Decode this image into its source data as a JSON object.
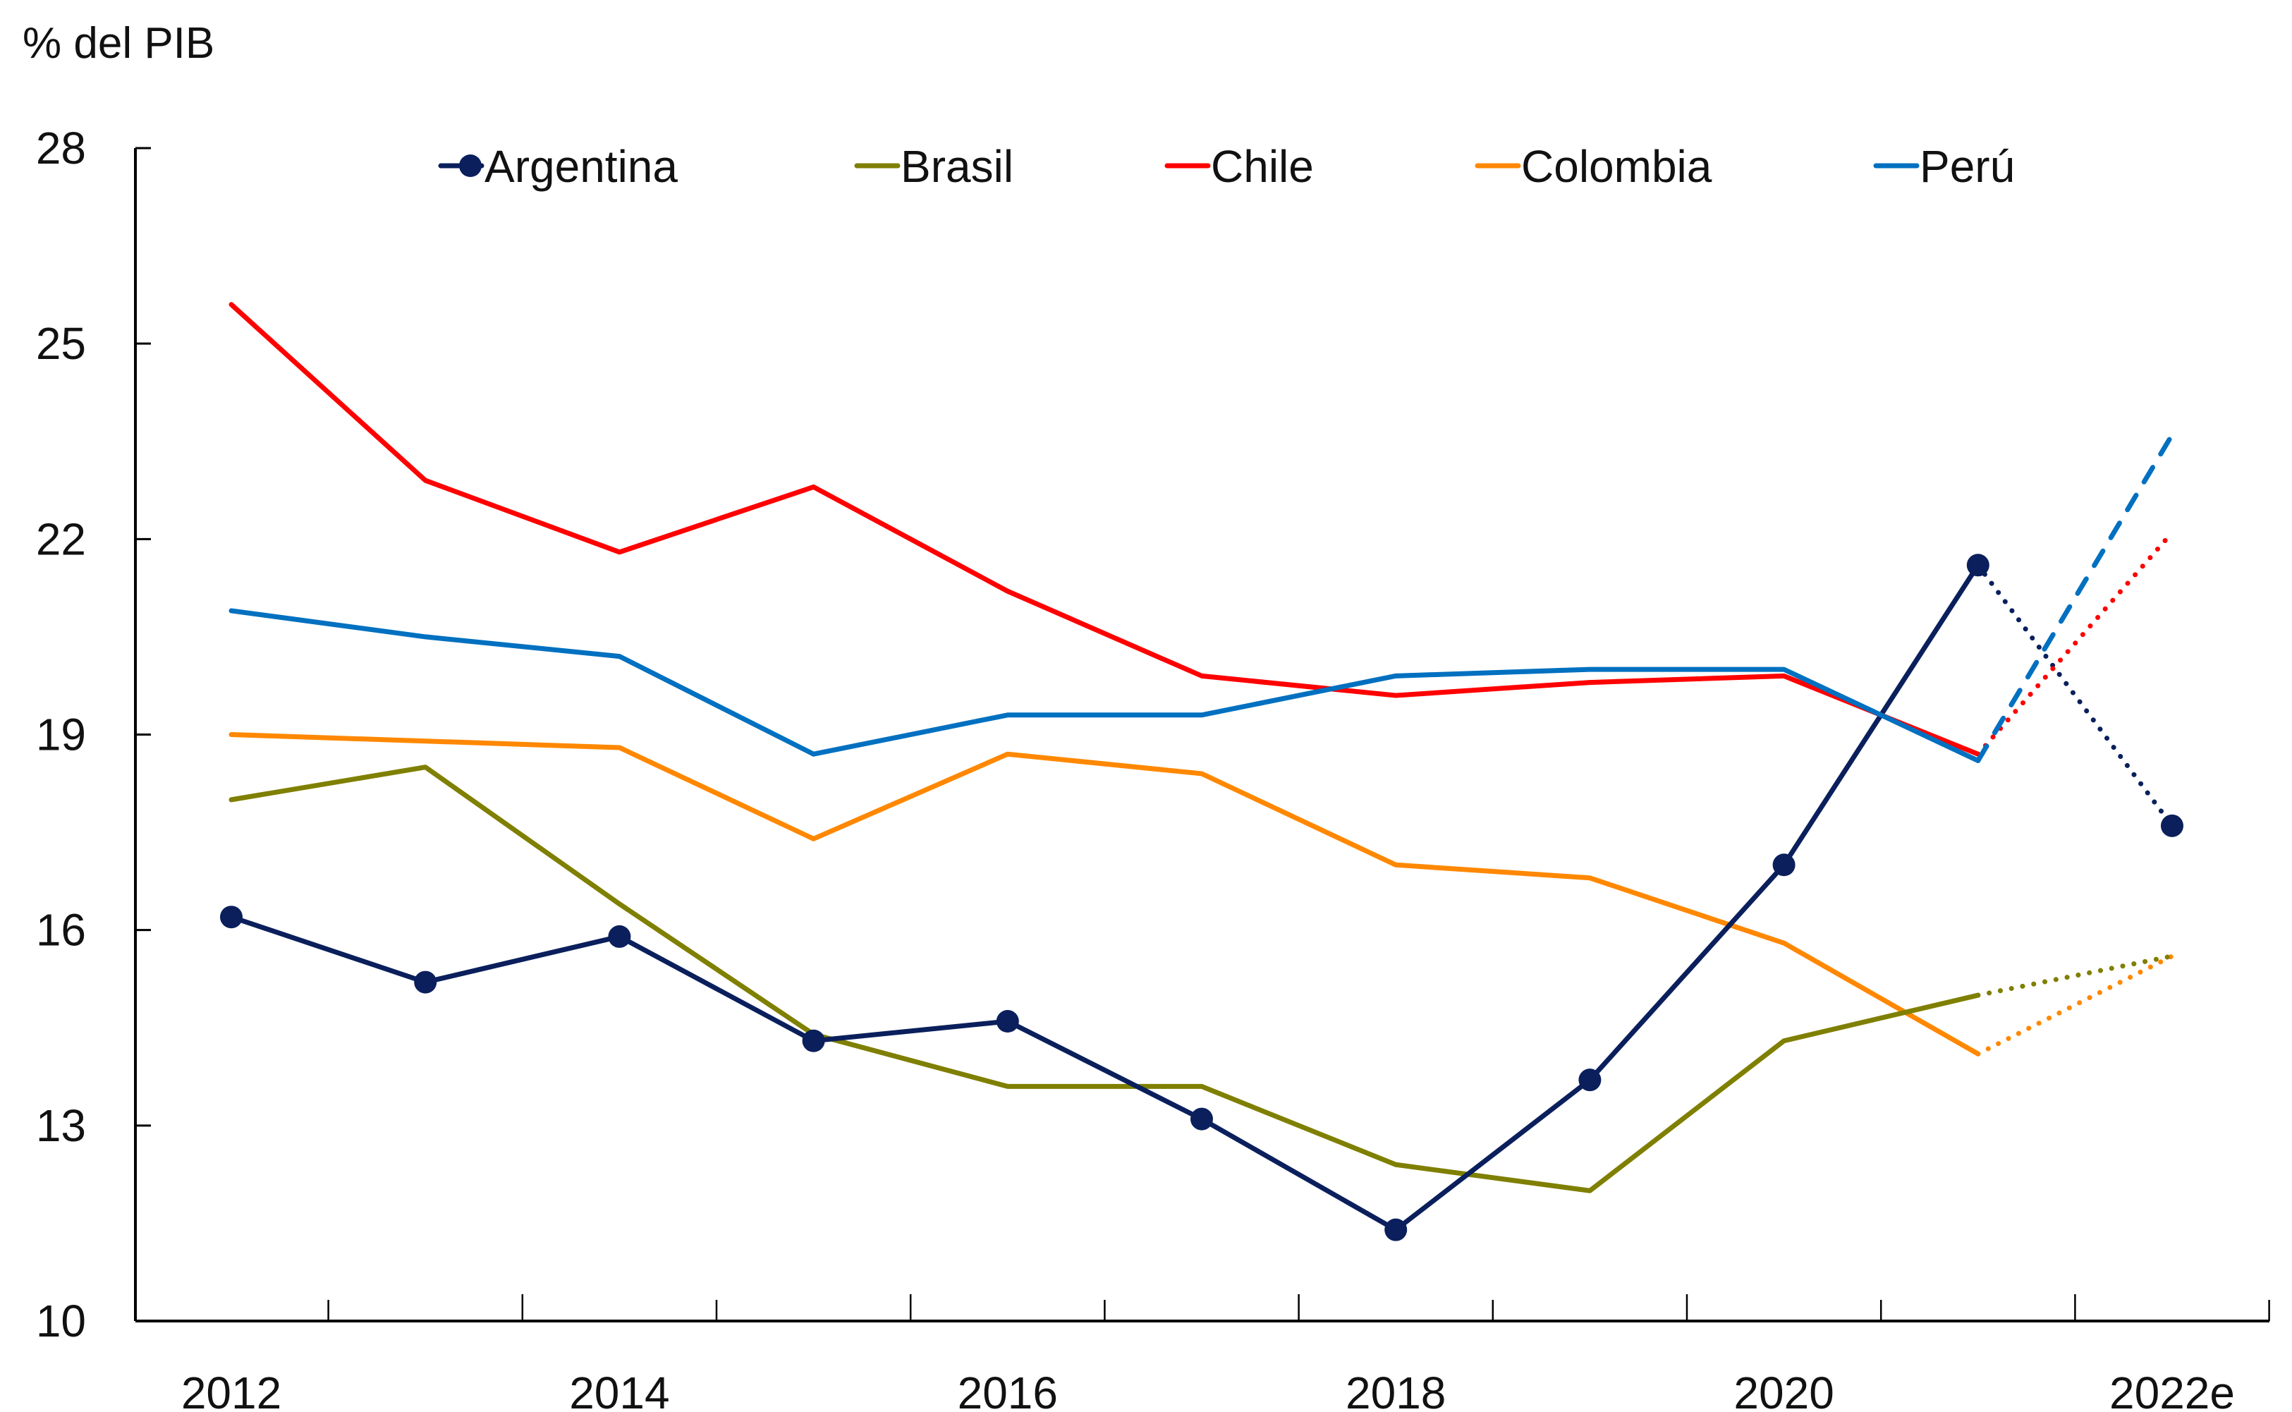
{
  "chart_data": {
    "type": "line",
    "title": "",
    "ylabel": "% del PIB",
    "xlabel": "",
    "ylim": [
      10,
      28
    ],
    "yticks": [
      10,
      13,
      16,
      19,
      22,
      25,
      28
    ],
    "x": [
      "2012",
      "2013",
      "2014",
      "2015",
      "2016",
      "2017",
      "2018",
      "2019",
      "2020",
      "2021",
      "2022e"
    ],
    "xtick_labels": [
      "2012",
      "2014",
      "2016",
      "2018",
      "2020",
      "2022e"
    ],
    "grid": false,
    "legend_position": "top",
    "projection_from": "2021",
    "series": [
      {
        "name": "Argentina",
        "color": "#0a1f5c",
        "markers": true,
        "projection_style": "dotted",
        "values": [
          16.2,
          15.2,
          15.9,
          14.3,
          14.6,
          13.1,
          11.4,
          13.7,
          17.0,
          21.6,
          17.6
        ]
      },
      {
        "name": "Brasil",
        "color": "#7f7f00",
        "markers": false,
        "projection_style": "dotted",
        "values": [
          18.0,
          18.5,
          16.4,
          14.4,
          13.6,
          13.6,
          12.4,
          12.0,
          14.3,
          15.0,
          15.6
        ]
      },
      {
        "name": "Chile",
        "color": "#ff0000",
        "markers": false,
        "projection_style": "dotted",
        "values": [
          25.6,
          22.9,
          21.8,
          22.8,
          21.2,
          19.9,
          19.6,
          19.8,
          19.9,
          18.7,
          22.1
        ]
      },
      {
        "name": "Colombia",
        "color": "#ff8800",
        "markers": false,
        "projection_style": "dotted",
        "values": [
          19.0,
          18.9,
          18.8,
          17.4,
          18.7,
          18.4,
          17.0,
          16.8,
          15.8,
          14.1,
          15.6
        ]
      },
      {
        "name": "Perú",
        "color": "#0070c0",
        "markers": false,
        "projection_style": "dashed",
        "values": [
          20.9,
          20.5,
          20.2,
          18.7,
          19.3,
          19.3,
          19.9,
          20.0,
          20.0,
          18.6,
          23.6
        ]
      }
    ]
  }
}
